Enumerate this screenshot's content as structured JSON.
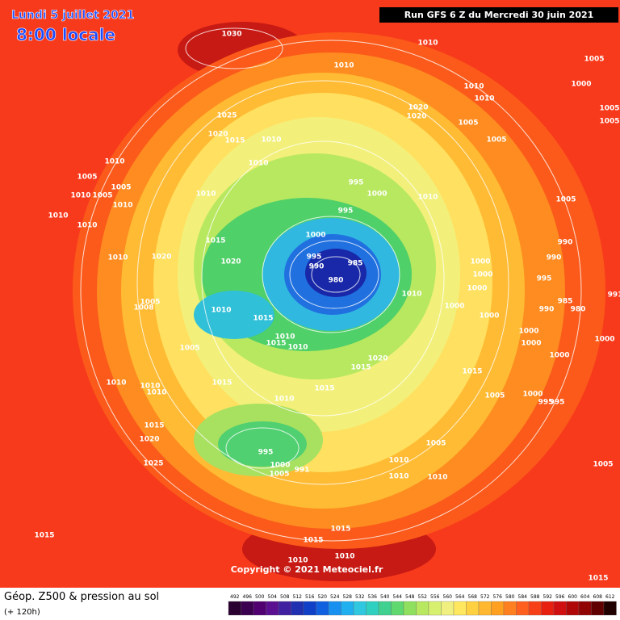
{
  "header": {
    "date": "Lundi 5 juillet 2021",
    "time": "8:00 locale",
    "run": "Run GFS 6 Z du Mercredi 30 juin 2021"
  },
  "map": {
    "pressure_labels": [
      "1030",
      "1010",
      "1010",
      "1005",
      "1000",
      "1010",
      "1010",
      "1020",
      "1020",
      "1005",
      "1005",
      "1025",
      "1020",
      "1015",
      "1010",
      "1005",
      "1005",
      "1010",
      "1010",
      "995",
      "1000",
      "1010",
      "1005",
      "1005",
      "1010",
      "1010",
      "1005",
      "1010",
      "1010",
      "1010",
      "995",
      "1005",
      "1000",
      "1015",
      "990",
      "995",
      "985",
      "990",
      "980",
      "1020",
      "1020",
      "1010",
      "1000",
      "990",
      "995",
      "1000",
      "1000",
      "1010",
      "1000",
      "985",
      "990",
      "980",
      "991",
      "1005",
      "1008",
      "1010",
      "1015",
      "1000",
      "1000",
      "1000",
      "1000",
      "1000",
      "1005",
      "1010",
      "1015",
      "1010",
      "1020",
      "1015",
      "1015",
      "1015",
      "1010",
      "1010",
      "1010",
      "1015",
      "1010",
      "1005",
      "1000",
      "995",
      "995",
      "1015",
      "1020",
      "995",
      "1005",
      "1010",
      "1000",
      "991",
      "1005",
      "1010",
      "1010",
      "1025",
      "1005",
      "1015",
      "1015",
      "1015",
      "1010",
      "1010",
      "1015"
    ],
    "copyright": "Copyright © 2021 Meteociel.fr"
  },
  "footer": {
    "title": "Géop. Z500 & pression au sol",
    "lead": "(+ 120h)",
    "scale": [
      "492",
      "496",
      "500",
      "504",
      "508",
      "512",
      "516",
      "520",
      "524",
      "528",
      "532",
      "536",
      "540",
      "544",
      "548",
      "552",
      "556",
      "560",
      "564",
      "568",
      "572",
      "576",
      "580",
      "584",
      "588",
      "592",
      "596",
      "600",
      "604",
      "608",
      "612"
    ]
  }
}
